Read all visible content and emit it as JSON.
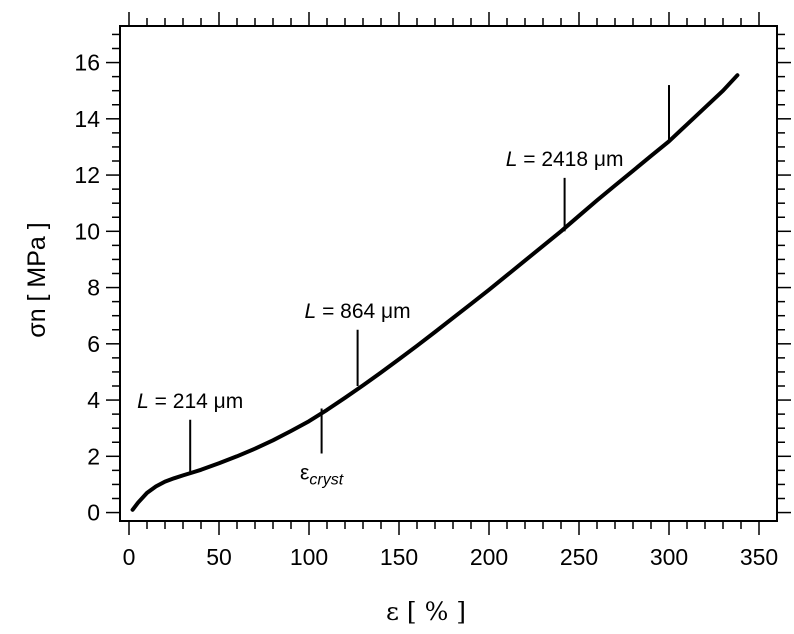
{
  "chart_data": {
    "type": "line",
    "xlabel": "ε  [ % ]",
    "ylabel": "σn  [ MPa ]",
    "xlim": [
      -5,
      360
    ],
    "ylim": [
      -0.3,
      17.3
    ],
    "xticks": [
      0,
      50,
      100,
      150,
      200,
      250,
      300,
      350
    ],
    "yticks": [
      0,
      2,
      4,
      6,
      8,
      10,
      12,
      14,
      16
    ],
    "grid": false,
    "series": [
      {
        "x": [
          2,
          5,
          10,
          15,
          20,
          25,
          30,
          35,
          40,
          50,
          60,
          70,
          80,
          90,
          100,
          110,
          120,
          130,
          140,
          150,
          160,
          170,
          180,
          190,
          200,
          210,
          220,
          230,
          240,
          250,
          260,
          270,
          280,
          290,
          300,
          310,
          320,
          330,
          338
        ],
        "y": [
          0.1,
          0.35,
          0.7,
          0.93,
          1.1,
          1.22,
          1.32,
          1.42,
          1.52,
          1.75,
          2.0,
          2.27,
          2.57,
          2.9,
          3.25,
          3.65,
          4.08,
          4.52,
          4.98,
          5.45,
          5.93,
          6.42,
          6.92,
          7.42,
          7.92,
          8.44,
          8.96,
          9.48,
          10.0,
          10.55,
          11.1,
          11.63,
          12.15,
          12.68,
          13.2,
          13.8,
          14.4,
          15.0,
          15.55
        ]
      }
    ],
    "annotations": [
      {
        "label_pre": "L",
        "label_post": " = 214 μm",
        "x": 34,
        "y_from": 1.4,
        "y_to": 3.3
      },
      {
        "label_pre": "L",
        "label_post": " = 864 μm",
        "x": 127,
        "y_from": 4.5,
        "y_to": 6.5
      },
      {
        "label_pre": "L",
        "label_post": " = 2418 μm",
        "x": 242,
        "y_from": 10.0,
        "y_to": 11.9
      },
      {
        "label_pre": "",
        "label_post": "",
        "x": 300,
        "y_from": 13.25,
        "y_to": 15.2
      }
    ],
    "marker": {
      "base": "ε",
      "sub": "cryst",
      "x": 107,
      "y_from": 3.7,
      "y_to": 2.1
    }
  }
}
